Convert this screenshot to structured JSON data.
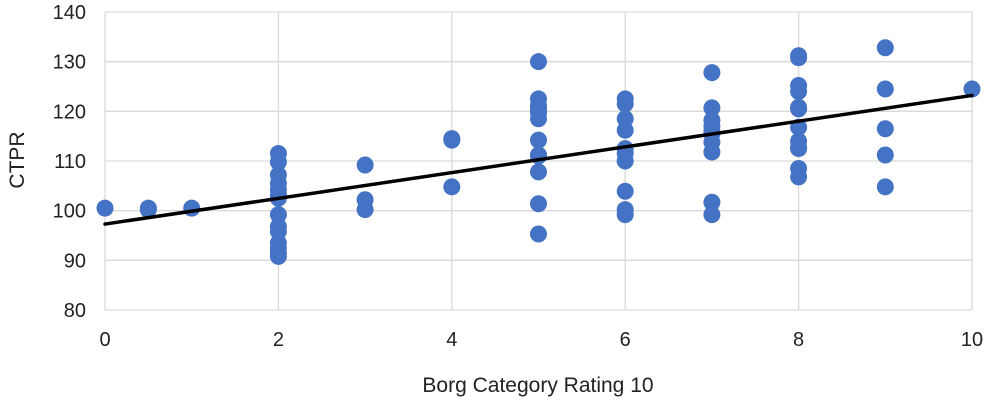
{
  "chart_data": {
    "type": "scatter",
    "xlabel": "Borg Category Rating 10",
    "ylabel": "CTPR",
    "xlim": [
      0,
      10
    ],
    "ylim": [
      80,
      140
    ],
    "xticks": [
      0,
      2,
      4,
      6,
      8,
      10
    ],
    "yticks": [
      80,
      90,
      100,
      110,
      120,
      130,
      140
    ],
    "grid": true,
    "legend": "none",
    "marker_color": "#4472C4",
    "trendline": {
      "type": "linear",
      "color": "#000000",
      "start": [
        0,
        97.3
      ],
      "end": [
        10,
        123.2
      ]
    },
    "series": [
      {
        "x": [
          0,
          0.5,
          0.5,
          1,
          2,
          2,
          2,
          2,
          2,
          2,
          2,
          2,
          2,
          2,
          2,
          2,
          2,
          2,
          3,
          3,
          3,
          4,
          4,
          4,
          5,
          5,
          5,
          5,
          5,
          5,
          5,
          5,
          5,
          5,
          5,
          5,
          6,
          6,
          6,
          6,
          6,
          6,
          6,
          6,
          6,
          6,
          7,
          7,
          7,
          7,
          7,
          7,
          7,
          7,
          7,
          7,
          8,
          8,
          8,
          8,
          8,
          8,
          8,
          8,
          8,
          8,
          8,
          8,
          9,
          9,
          9,
          9,
          9,
          10
        ],
        "y": [
          100.5,
          100.5,
          100.2,
          100.5,
          111.5,
          109.8,
          107.2,
          105.5,
          104.2,
          103.2,
          102.5,
          99.2,
          96.8,
          95.8,
          93.5,
          92.5,
          91.5,
          90.8,
          109.2,
          102.2,
          100.2,
          114.5,
          114.2,
          104.8,
          130.0,
          122.5,
          121.2,
          120.5,
          119.8,
          118.5,
          114.2,
          111.2,
          111.0,
          107.8,
          101.4,
          95.3,
          122.5,
          121.5,
          118.5,
          116.2,
          112.5,
          111.5,
          110.0,
          103.9,
          100.2,
          99.2,
          127.8,
          120.7,
          118.2,
          117.0,
          116.0,
          115.5,
          113.8,
          111.8,
          101.7,
          99.2,
          131.2,
          130.8,
          125.2,
          124.0,
          120.8,
          120.5,
          116.8,
          114.0,
          112.8,
          112.5,
          108.5,
          106.8,
          132.8,
          124.5,
          116.5,
          111.2,
          104.8,
          124.5
        ]
      }
    ]
  }
}
